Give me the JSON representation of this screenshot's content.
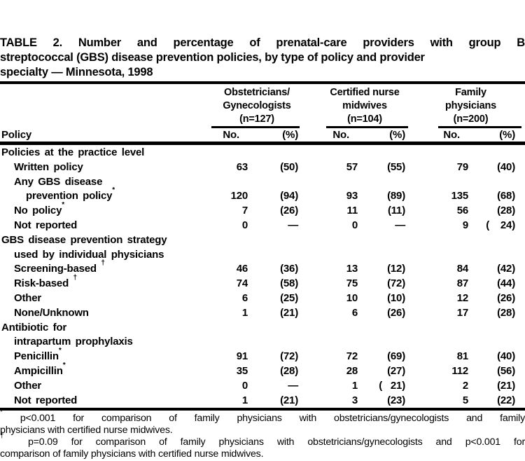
{
  "colors": {
    "text": "#000000",
    "background": "#ffffff",
    "rule": "#000000"
  },
  "title_lines": [
    "TABLE 2. Number and percentage of prenatal-care providers with group B",
    "streptococcal (GBS) disease prevention policies, by type of policy and provider",
    "specialty — Minnesota, 1998"
  ],
  "table": {
    "row_header": "Policy",
    "groups": [
      {
        "lines": [
          "Obstetricians/",
          "Gynecologists",
          "(n=127)"
        ],
        "col_headers": [
          "No.",
          "(%)"
        ]
      },
      {
        "lines": [
          "Certified nurse",
          "midwives",
          "(n=104)"
        ],
        "col_headers": [
          "No.",
          "(%)"
        ]
      },
      {
        "lines": [
          "Family",
          "physicians",
          "(n=200)"
        ],
        "col_headers": [
          "No.",
          "(%)"
        ]
      }
    ],
    "rows": [
      {
        "type": "section",
        "indent": 0,
        "label": "Policies at the practice level"
      },
      {
        "type": "data",
        "indent": 1,
        "label": "Written policy",
        "values": [
          "63",
          "(50)",
          "57",
          "(55)",
          "79",
          "(40)"
        ]
      },
      {
        "type": "label",
        "indent": 1,
        "label": "Any GBS disease"
      },
      {
        "type": "data",
        "indent": 2,
        "label": "prevention policy*",
        "values": [
          "120",
          "(94)",
          "93",
          "(89)",
          "135",
          "(68)"
        ]
      },
      {
        "type": "data",
        "indent": 1,
        "label": "No policy*",
        "values": [
          "7",
          "(26)",
          "11",
          "(11)",
          "56",
          "(28)"
        ]
      },
      {
        "type": "data",
        "indent": 1,
        "label": "Not reported",
        "values": [
          "0",
          "—",
          "0",
          "—",
          "9",
          "(    24)"
        ]
      },
      {
        "type": "section",
        "indent": 0,
        "label": "GBS disease prevention strategy"
      },
      {
        "type": "label",
        "indent": 1,
        "label": "used by individual physicians"
      },
      {
        "type": "data",
        "indent": 1,
        "label": "Screening-based †",
        "values": [
          "46",
          "(36)",
          "13",
          "(12)",
          "84",
          "(42)"
        ]
      },
      {
        "type": "data",
        "indent": 1,
        "label": "Risk-based †",
        "values": [
          "74",
          "(58)",
          "75",
          "(72)",
          "87",
          "(44)"
        ]
      },
      {
        "type": "data",
        "indent": 1,
        "label": "Other",
        "values": [
          "6",
          "(25)",
          "10",
          "(10)",
          "12",
          "(26)"
        ]
      },
      {
        "type": "data",
        "indent": 1,
        "label": "None/Unknown",
        "values": [
          "1",
          "(21)",
          "6",
          "(26)",
          "17",
          "(28)"
        ]
      },
      {
        "type": "section",
        "indent": 0,
        "label": "Antibiotic for"
      },
      {
        "type": "label",
        "indent": 1,
        "label": "intrapartum prophylaxis"
      },
      {
        "type": "data",
        "indent": 1,
        "label": "Penicillin*",
        "values": [
          "91",
          "(72)",
          "72",
          "(69)",
          "81",
          "(40)"
        ]
      },
      {
        "type": "data",
        "indent": 1,
        "label": "Ampicillin*",
        "values": [
          "35",
          "(28)",
          "28",
          "(27)",
          "112",
          "(56)"
        ]
      },
      {
        "type": "data",
        "indent": 1,
        "label": "Other",
        "values": [
          "0",
          "—",
          "1",
          "(   21)",
          "2",
          "(21)"
        ]
      },
      {
        "type": "data",
        "indent": 1,
        "label": "Not reported",
        "values": [
          "1",
          "(21)",
          "3",
          "(23)",
          "5",
          "(22)"
        ]
      }
    ]
  },
  "footnotes": {
    "lines": [
      {
        "marker": "*",
        "text": "p<0.001 for comparison of family physicians with obstetricians/gynecologists and family",
        "justify": true
      },
      {
        "text": "physicians with certified nurse midwives.",
        "justify": false
      },
      {
        "marker": "†",
        "text": "p=0.09 for comparison of family physicians with obstetricians/gynecologists and p<0.001 for",
        "justify": true
      },
      {
        "text": "comparison of family physicians with certified nurse midwives.",
        "justify": false
      }
    ]
  }
}
